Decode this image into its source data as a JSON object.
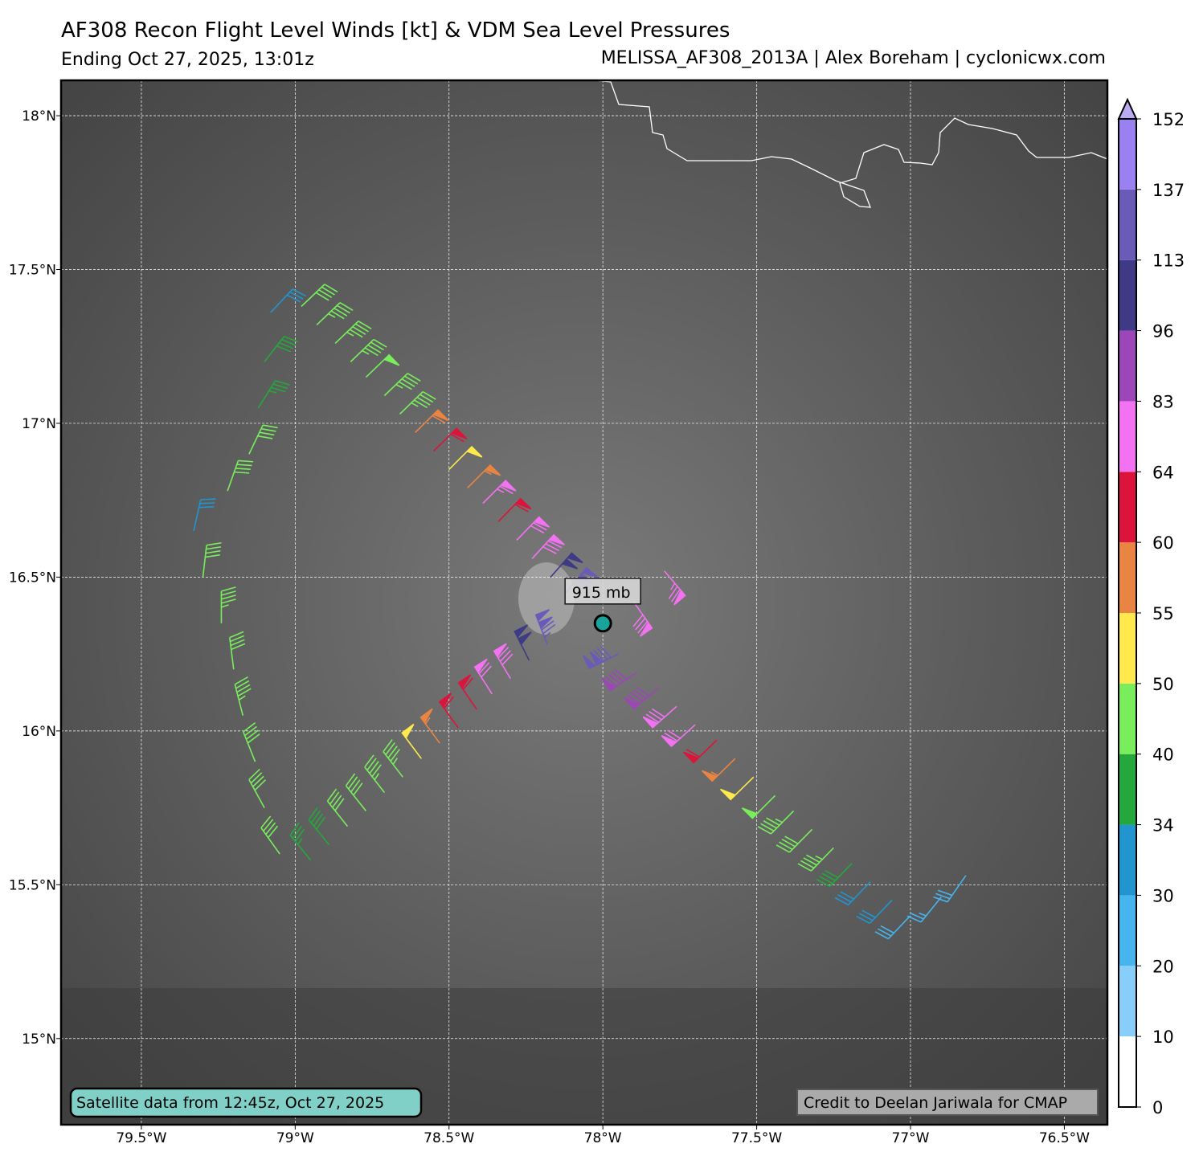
{
  "title": "AF308 Recon Flight Level Winds [kt] & VDM Sea Level Pressures",
  "subtitle": "Ending Oct 27, 2025, 13:01z",
  "source": "MELISSA_AF308_2013A | Alex Boreham | cyclonicwx.com",
  "map": {
    "xlim": [
      -79.761,
      -76.36
    ],
    "ylim": [
      14.72,
      18.115
    ],
    "xticks": [
      {
        "value": -79.5,
        "label": "79.5°W"
      },
      {
        "value": -79,
        "label": "79°W"
      },
      {
        "value": -78.5,
        "label": "78.5°W"
      },
      {
        "value": -78,
        "label": "78°W"
      },
      {
        "value": -77.5,
        "label": "77.5°W"
      },
      {
        "value": -77,
        "label": "77°W"
      },
      {
        "value": -76.5,
        "label": "76.5°W"
      }
    ],
    "yticks": [
      {
        "value": 15,
        "label": "15°N"
      },
      {
        "value": 15.5,
        "label": "15.5°N"
      },
      {
        "value": 16,
        "label": "16°N"
      },
      {
        "value": 16.5,
        "label": "16.5°N"
      },
      {
        "value": 17,
        "label": "17°N"
      },
      {
        "value": 17.5,
        "label": "17.5°N"
      },
      {
        "value": 18,
        "label": "18°N"
      }
    ],
    "grid": true
  },
  "colorbar": {
    "levels": [
      0,
      10,
      20,
      30,
      34,
      40,
      50,
      55,
      60,
      64,
      83,
      96,
      113,
      137,
      152
    ],
    "colors": [
      "#ffffff",
      "#87cffa",
      "#46b4ee",
      "#2095d0",
      "#24a83c",
      "#78ee5c",
      "#ffe94c",
      "#ea8442",
      "#dc143c",
      "#f272f2",
      "#9c46b8",
      "#3f3a86",
      "#6a5bb8",
      "#9a80f0"
    ],
    "extend_color": "#b9aaf2"
  },
  "center": {
    "lon": -78.0,
    "lat": 16.35,
    "label": "915 mb",
    "color": "#1aa39a"
  },
  "notes": {
    "satellite": "Satellite data from 12:45z, Oct 27, 2025",
    "credit": "Credit to Deelan Jariwala for CMAP"
  },
  "observations": [
    {
      "lon": -78.98,
      "lat": 17.38,
      "kt": 42
    },
    {
      "lon": -78.93,
      "lat": 17.32,
      "kt": 44
    },
    {
      "lon": -78.87,
      "lat": 17.26,
      "kt": 45
    },
    {
      "lon": -78.82,
      "lat": 17.2,
      "kt": 46
    },
    {
      "lon": -78.77,
      "lat": 17.15,
      "kt": 48
    },
    {
      "lon": -78.71,
      "lat": 17.09,
      "kt": 47
    },
    {
      "lon": -78.66,
      "lat": 17.03,
      "kt": 45
    },
    {
      "lon": -78.61,
      "lat": 16.97,
      "kt": 58
    },
    {
      "lon": -78.55,
      "lat": 16.91,
      "kt": 62
    },
    {
      "lon": -78.5,
      "lat": 16.85,
      "kt": 52
    },
    {
      "lon": -78.44,
      "lat": 16.79,
      "kt": 57
    },
    {
      "lon": -78.39,
      "lat": 16.74,
      "kt": 66
    },
    {
      "lon": -78.34,
      "lat": 16.68,
      "kt": 62
    },
    {
      "lon": -78.28,
      "lat": 16.62,
      "kt": 72
    },
    {
      "lon": -78.23,
      "lat": 16.56,
      "kt": 78
    },
    {
      "lon": -78.17,
      "lat": 16.5,
      "kt": 100
    },
    {
      "lon": -78.12,
      "lat": 16.45,
      "kt": 118
    },
    {
      "lon": -78.95,
      "lat": 15.58,
      "kt": 36
    },
    {
      "lon": -78.89,
      "lat": 15.63,
      "kt": 38
    },
    {
      "lon": -78.83,
      "lat": 15.69,
      "kt": 40
    },
    {
      "lon": -78.77,
      "lat": 15.74,
      "kt": 42
    },
    {
      "lon": -78.71,
      "lat": 15.8,
      "kt": 45
    },
    {
      "lon": -78.65,
      "lat": 15.85,
      "kt": 46
    },
    {
      "lon": -78.59,
      "lat": 15.91,
      "kt": 50
    },
    {
      "lon": -78.53,
      "lat": 15.96,
      "kt": 57
    },
    {
      "lon": -78.47,
      "lat": 16.01,
      "kt": 62
    },
    {
      "lon": -78.41,
      "lat": 16.07,
      "kt": 62
    },
    {
      "lon": -78.36,
      "lat": 16.12,
      "kt": 72
    },
    {
      "lon": -78.3,
      "lat": 16.17,
      "kt": 78
    },
    {
      "lon": -78.24,
      "lat": 16.23,
      "kt": 98
    },
    {
      "lon": -78.18,
      "lat": 16.28,
      "kt": 125
    },
    {
      "lon": -77.95,
      "lat": 16.25,
      "kt": 130
    },
    {
      "lon": -77.89,
      "lat": 16.19,
      "kt": 90
    },
    {
      "lon": -77.82,
      "lat": 16.14,
      "kt": 88
    },
    {
      "lon": -77.76,
      "lat": 16.08,
      "kt": 80
    },
    {
      "lon": -77.7,
      "lat": 16.02,
      "kt": 72
    },
    {
      "lon": -77.63,
      "lat": 15.97,
      "kt": 62
    },
    {
      "lon": -77.57,
      "lat": 15.91,
      "kt": 56
    },
    {
      "lon": -77.51,
      "lat": 15.85,
      "kt": 52
    },
    {
      "lon": -77.44,
      "lat": 15.79,
      "kt": 48
    },
    {
      "lon": -77.38,
      "lat": 15.74,
      "kt": 46
    },
    {
      "lon": -77.32,
      "lat": 15.68,
      "kt": 42
    },
    {
      "lon": -77.25,
      "lat": 15.62,
      "kt": 44
    },
    {
      "lon": -77.19,
      "lat": 15.57,
      "kt": 38
    },
    {
      "lon": -77.13,
      "lat": 15.51,
      "kt": 32
    },
    {
      "lon": -77.06,
      "lat": 15.45,
      "kt": 30
    },
    {
      "lon": -77.0,
      "lat": 15.4,
      "kt": 28
    },
    {
      "lon": -76.9,
      "lat": 15.46,
      "kt": 26
    },
    {
      "lon": -76.82,
      "lat": 15.53,
      "kt": 28
    },
    {
      "lon": -77.9,
      "lat": 16.42,
      "kt": 78
    },
    {
      "lon": -77.8,
      "lat": 16.52,
      "kt": 76
    },
    {
      "lon": -79.08,
      "lat": 17.36,
      "kt": 32
    },
    {
      "lon": -79.1,
      "lat": 17.2,
      "kt": 38
    },
    {
      "lon": -79.12,
      "lat": 17.05,
      "kt": 34
    },
    {
      "lon": -79.15,
      "lat": 16.9,
      "kt": 40
    },
    {
      "lon": -79.22,
      "lat": 16.78,
      "kt": 40
    },
    {
      "lon": -79.33,
      "lat": 16.65,
      "kt": 32
    },
    {
      "lon": -79.3,
      "lat": 16.5,
      "kt": 42
    },
    {
      "lon": -79.24,
      "lat": 16.35,
      "kt": 44
    },
    {
      "lon": -79.2,
      "lat": 16.2,
      "kt": 40
    },
    {
      "lon": -79.17,
      "lat": 16.05,
      "kt": 44
    },
    {
      "lon": -79.13,
      "lat": 15.9,
      "kt": 42
    },
    {
      "lon": -79.1,
      "lat": 15.75,
      "kt": 40
    },
    {
      "lon": -79.05,
      "lat": 15.6,
      "kt": 40
    }
  ]
}
